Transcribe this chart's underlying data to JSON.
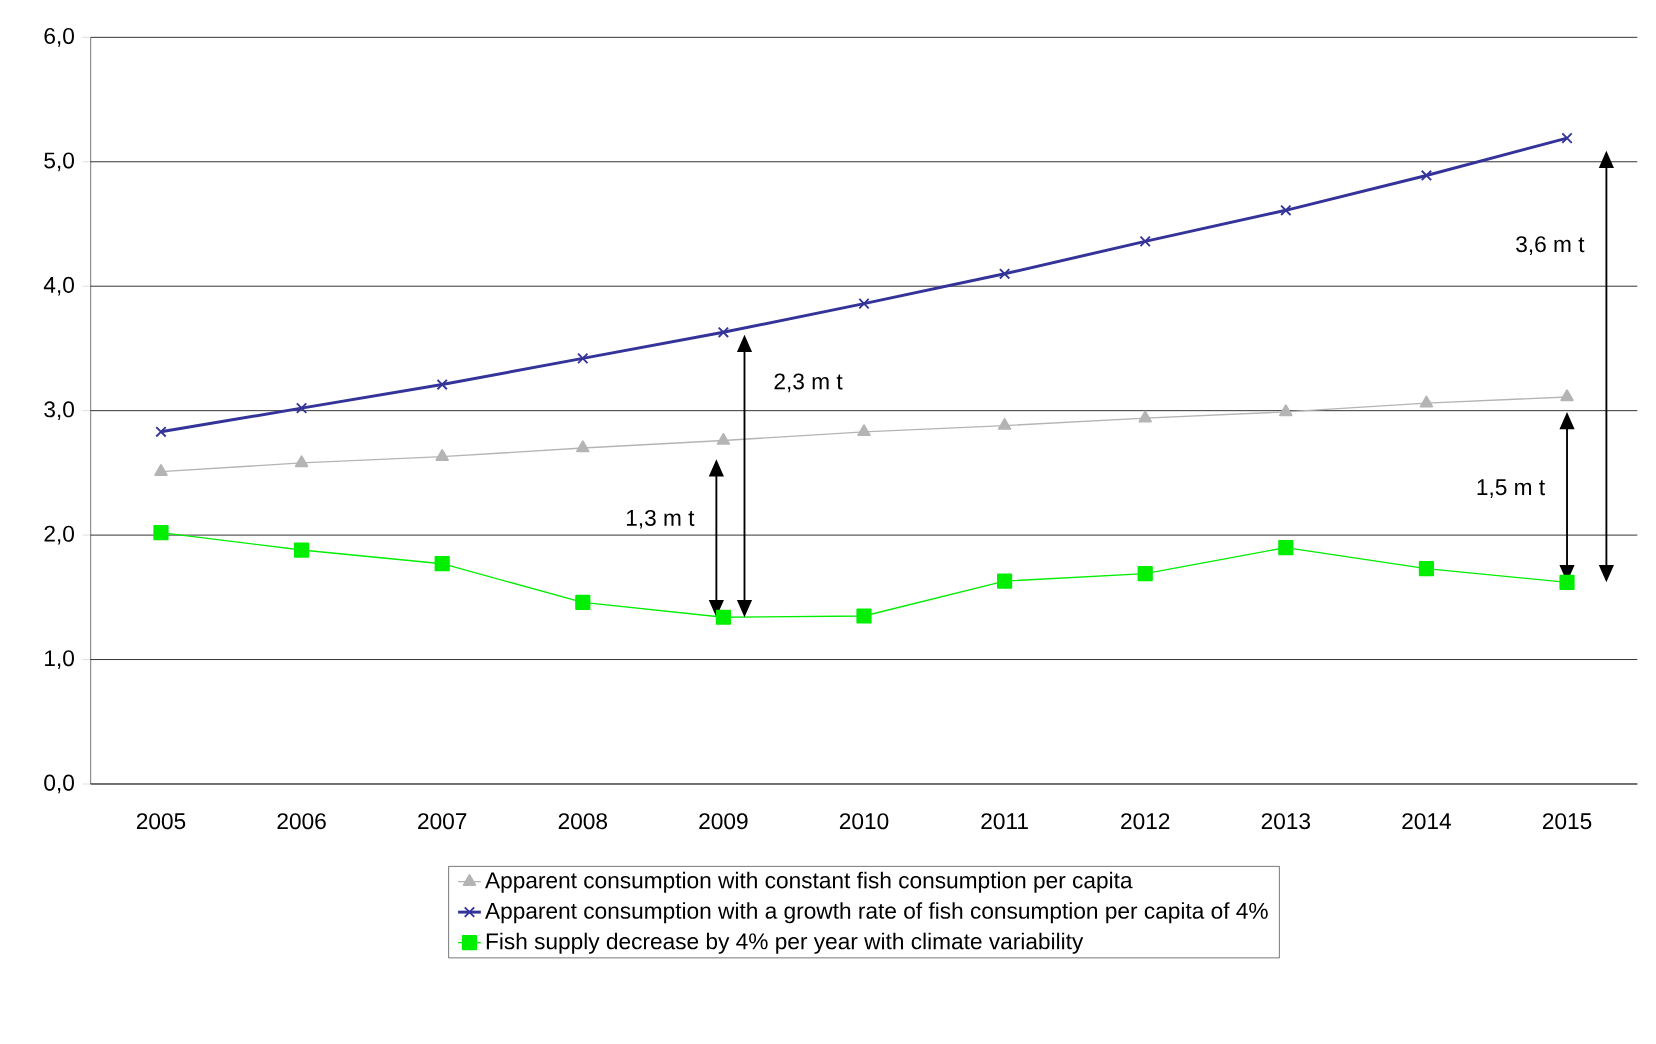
{
  "chart_data": {
    "type": "line",
    "categories": [
      "2005",
      "2006",
      "2007",
      "2008",
      "2009",
      "2010",
      "2011",
      "2012",
      "2013",
      "2014",
      "2015"
    ],
    "series": [
      {
        "name": "Apparent consumption with constant fish consumption per capita",
        "color": "#b4b4b4",
        "marker": "triangle",
        "values": [
          2.51,
          2.58,
          2.63,
          2.7,
          2.76,
          2.83,
          2.88,
          2.94,
          2.99,
          3.06,
          3.11
        ]
      },
      {
        "name": "Apparent consumption with a growth rate of fish consumption per capita of 4%",
        "color": "#333399",
        "marker": "cross",
        "values": [
          2.83,
          3.02,
          3.21,
          3.42,
          3.63,
          3.86,
          4.1,
          4.36,
          4.61,
          4.89,
          5.19
        ]
      },
      {
        "name": "Fish supply decrease by 4% per year with climate variability",
        "color": "#00ee00",
        "marker": "square",
        "values": [
          2.02,
          1.88,
          1.77,
          1.46,
          1.34,
          1.35,
          1.63,
          1.69,
          1.9,
          1.73,
          1.62
        ]
      }
    ],
    "ylim": [
      0,
      6
    ],
    "yticks": [
      {
        "value": 0,
        "label": "0,0"
      },
      {
        "value": 1,
        "label": "1,0"
      },
      {
        "value": 2,
        "label": "2,0"
      },
      {
        "value": 3,
        "label": "3,0"
      },
      {
        "value": 4,
        "label": "4,0"
      },
      {
        "value": 5,
        "label": "5,0"
      },
      {
        "value": 6,
        "label": "6,0"
      }
    ],
    "grid": "y",
    "legend": "bottom",
    "annotations": [
      "1,3 m t",
      "2,3 m t",
      "1,5 m t",
      "3,6 m t"
    ]
  }
}
